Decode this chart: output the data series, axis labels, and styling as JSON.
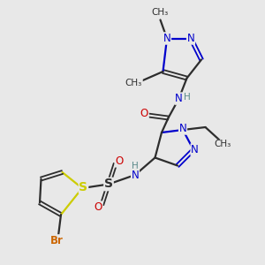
{
  "bg_color": "#e8e8e8",
  "bond_color": "#2d2d2d",
  "n_color": "#0000cc",
  "o_color": "#cc0000",
  "s_th_color": "#cccc00",
  "s_sulfonyl_color": "#2d2d2d",
  "br_color": "#cc6600",
  "h_color": "#5a8a8a",
  "c_color": "#2d2d2d",
  "figsize": [
    3.0,
    3.0
  ],
  "dpi": 100,
  "xlim": [
    0,
    10
  ],
  "ylim": [
    0,
    10
  ]
}
